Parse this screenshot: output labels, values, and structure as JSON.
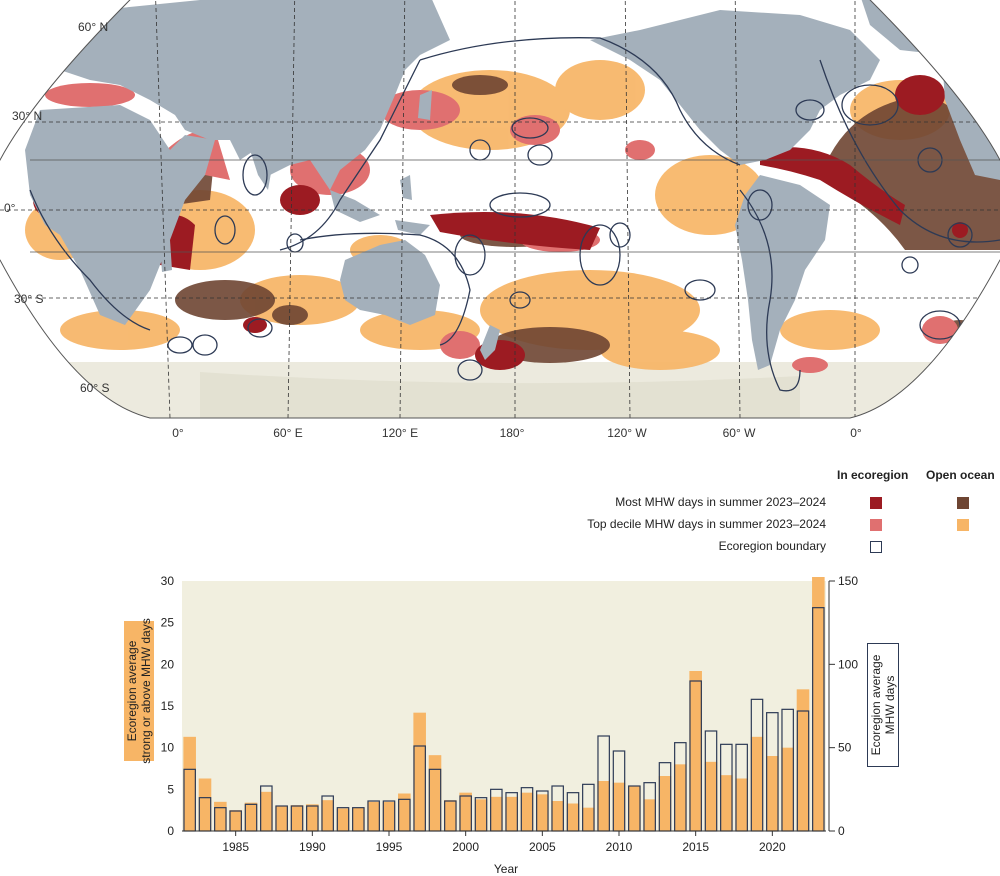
{
  "map": {
    "lat_labels": [
      "60° N",
      "30° N",
      "0°",
      "30° S",
      "60° S"
    ],
    "lon_labels": [
      "0°",
      "60° E",
      "120° E",
      "180°",
      "120° W",
      "60° W",
      "0°"
    ]
  },
  "legend": {
    "col_in": "In ecoregion",
    "col_open": "Open ocean",
    "rows": [
      {
        "label": "Most MHW days in summer 2023–2024",
        "in_color": "#9c1b22",
        "open_color": "#6e4532"
      },
      {
        "label": "Top decile MHW days in summer 2023–2024",
        "in_color": "#e07070",
        "open_color": "#f7b566"
      },
      {
        "label": "Ecoregion boundary",
        "in_color": "#ffffff",
        "boundary_color": "#2d3a55"
      }
    ]
  },
  "colors": {
    "ocean": "#ffffff",
    "land": "#a4b0bb",
    "ice": "#eceade",
    "boundary": "#2d3a55",
    "strong_bar": "#f7b566",
    "chart_bg": "#f1efdf"
  },
  "chart_data": {
    "type": "bar",
    "xlabel": "Year",
    "ylabel_left": "Ecoregion average\nstrong or above MHW days",
    "ylabel_right": "Ecoregion average\nMHW days",
    "ylim_left": [
      0,
      30
    ],
    "ylim_right": [
      0,
      150
    ],
    "yticks_left": [
      "0",
      "5",
      "10",
      "15",
      "20",
      "25",
      "30"
    ],
    "yticks_right": [
      "0",
      "50",
      "100",
      "150"
    ],
    "xticks": [
      "1985",
      "1990",
      "1995",
      "2000",
      "2005",
      "2010",
      "2015",
      "2020"
    ],
    "x": [
      1982,
      1983,
      1984,
      1985,
      1986,
      1987,
      1988,
      1989,
      1990,
      1991,
      1992,
      1993,
      1994,
      1995,
      1996,
      1997,
      1998,
      1999,
      2000,
      2001,
      2002,
      2003,
      2004,
      2005,
      2006,
      2007,
      2008,
      2009,
      2010,
      2011,
      2012,
      2013,
      2014,
      2015,
      2016,
      2017,
      2018,
      2019,
      2020,
      2021,
      2022,
      2023
    ],
    "series": [
      {
        "axis": "left",
        "values": [
          11.3,
          6.3,
          3.5,
          2.5,
          3.4,
          4.7,
          3.0,
          3.1,
          3.2,
          3.7,
          2.7,
          2.8,
          3.5,
          3.5,
          4.5,
          14.2,
          9.1,
          3.7,
          4.6,
          3.8,
          4.1,
          4.1,
          4.6,
          4.4,
          3.6,
          3.3,
          2.8,
          6.0,
          5.8,
          5.4,
          3.8,
          6.6,
          8.0,
          19.2,
          8.3,
          6.7,
          6.3,
          11.3,
          9.0,
          10.0,
          17.0,
          31.0
        ]
      },
      {
        "axis": "right",
        "values": [
          37,
          20,
          14,
          12,
          16,
          27,
          15,
          15,
          15,
          21,
          14,
          14,
          18,
          18,
          19,
          51,
          37,
          18,
          21,
          20,
          25,
          23,
          26,
          24,
          27,
          23,
          28,
          57,
          48,
          27,
          29,
          41,
          53,
          90,
          60,
          52,
          52,
          79,
          71,
          73,
          72,
          134
        ]
      }
    ]
  }
}
